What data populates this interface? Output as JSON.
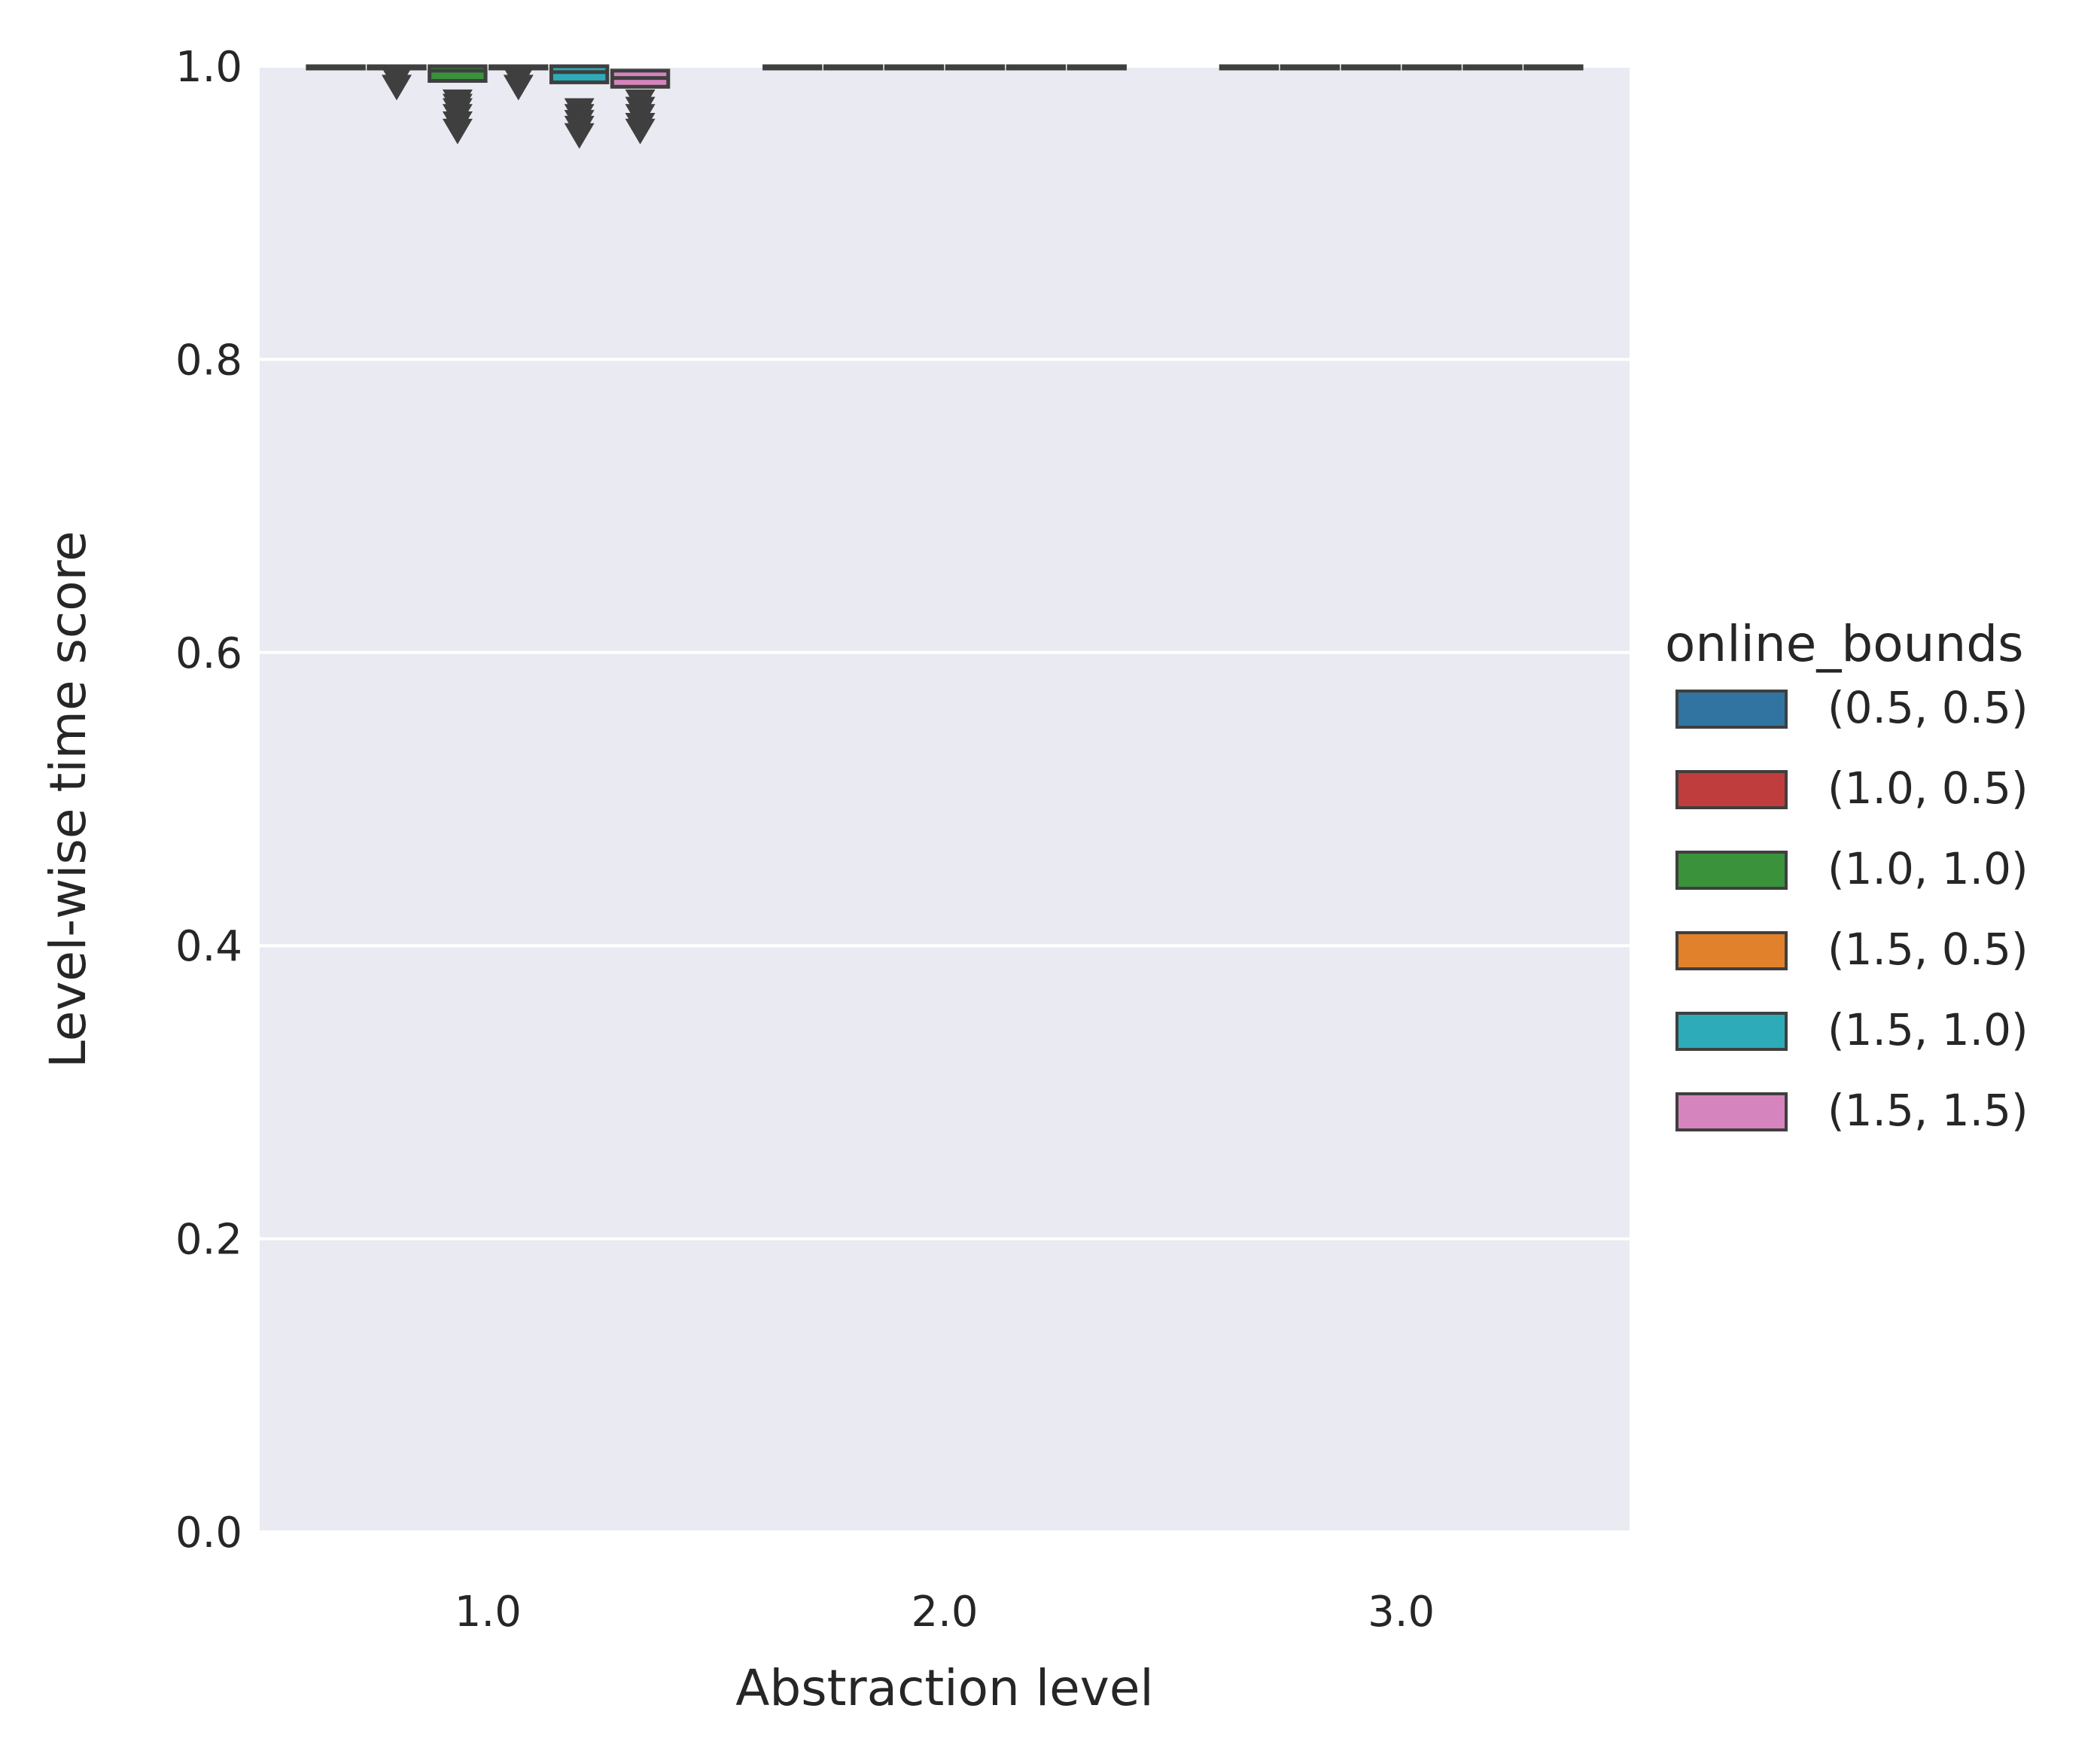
{
  "chart_data": {
    "type": "box",
    "xlabel": "Abstraction level",
    "ylabel": "Level-wise time score",
    "categories": [
      "1.0",
      "2.0",
      "3.0"
    ],
    "ylim": [
      0.0,
      1.0
    ],
    "yticks": [
      "0.0",
      "0.2",
      "0.4",
      "0.6",
      "0.8",
      "1.0"
    ],
    "grid": true,
    "legend": {
      "title": "online_bounds",
      "placement": "right",
      "entries": [
        "(0.5, 0.5)",
        "(1.0, 0.5)",
        "(1.0, 1.0)",
        "(1.5, 0.5)",
        "(1.5, 1.0)",
        "(1.5, 1.5)"
      ]
    },
    "series": [
      {
        "name": "(0.5, 0.5)",
        "color": "#3274a1",
        "boxes": [
          {
            "q1": 1.0,
            "median": 1.0,
            "q3": 1.0,
            "outliers": []
          },
          {
            "q1": 1.0,
            "median": 1.0,
            "q3": 1.0,
            "outliers": []
          },
          {
            "q1": 1.0,
            "median": 1.0,
            "q3": 1.0,
            "outliers": []
          }
        ]
      },
      {
        "name": "(1.0, 0.5)",
        "color": "#c03d3e",
        "boxes": [
          {
            "q1": 1.0,
            "median": 1.0,
            "q3": 1.0,
            "outliers": [
              0.993,
              0.988
            ]
          },
          {
            "q1": 1.0,
            "median": 1.0,
            "q3": 1.0,
            "outliers": []
          },
          {
            "q1": 1.0,
            "median": 1.0,
            "q3": 1.0,
            "outliers": []
          }
        ]
      },
      {
        "name": "(1.0, 1.0)",
        "color": "#3a923a",
        "boxes": [
          {
            "q1": 0.99,
            "median": 0.997,
            "q3": 1.0,
            "outliers": [
              0.978,
              0.975,
              0.972,
              0.968,
              0.963,
              0.958
            ]
          },
          {
            "q1": 1.0,
            "median": 1.0,
            "q3": 1.0,
            "outliers": []
          },
          {
            "q1": 1.0,
            "median": 1.0,
            "q3": 1.0,
            "outliers": []
          }
        ]
      },
      {
        "name": "(1.5, 0.5)",
        "color": "#e1812c",
        "boxes": [
          {
            "q1": 1.0,
            "median": 1.0,
            "q3": 1.0,
            "outliers": [
              0.993,
              0.988
            ]
          },
          {
            "q1": 1.0,
            "median": 1.0,
            "q3": 1.0,
            "outliers": []
          },
          {
            "q1": 1.0,
            "median": 1.0,
            "q3": 1.0,
            "outliers": []
          }
        ]
      },
      {
        "name": "(1.5, 1.0)",
        "color": "#2eabb8",
        "boxes": [
          {
            "q1": 0.989,
            "median": 0.996,
            "q3": 1.0,
            "outliers": [
              0.972,
              0.968,
              0.964,
              0.96,
              0.955
            ]
          },
          {
            "q1": 1.0,
            "median": 1.0,
            "q3": 1.0,
            "outliers": []
          },
          {
            "q1": 1.0,
            "median": 1.0,
            "q3": 1.0,
            "outliers": []
          }
        ]
      },
      {
        "name": "(1.5, 1.5)",
        "color": "#d684bd",
        "boxes": [
          {
            "q1": 0.986,
            "median": 0.992,
            "q3": 0.997,
            "outliers": [
              0.978,
              0.973,
              0.968,
              0.962,
              0.958
            ]
          },
          {
            "q1": 1.0,
            "median": 1.0,
            "q3": 1.0,
            "outliers": []
          },
          {
            "q1": 1.0,
            "median": 1.0,
            "q3": 1.0,
            "outliers": []
          }
        ]
      }
    ]
  }
}
